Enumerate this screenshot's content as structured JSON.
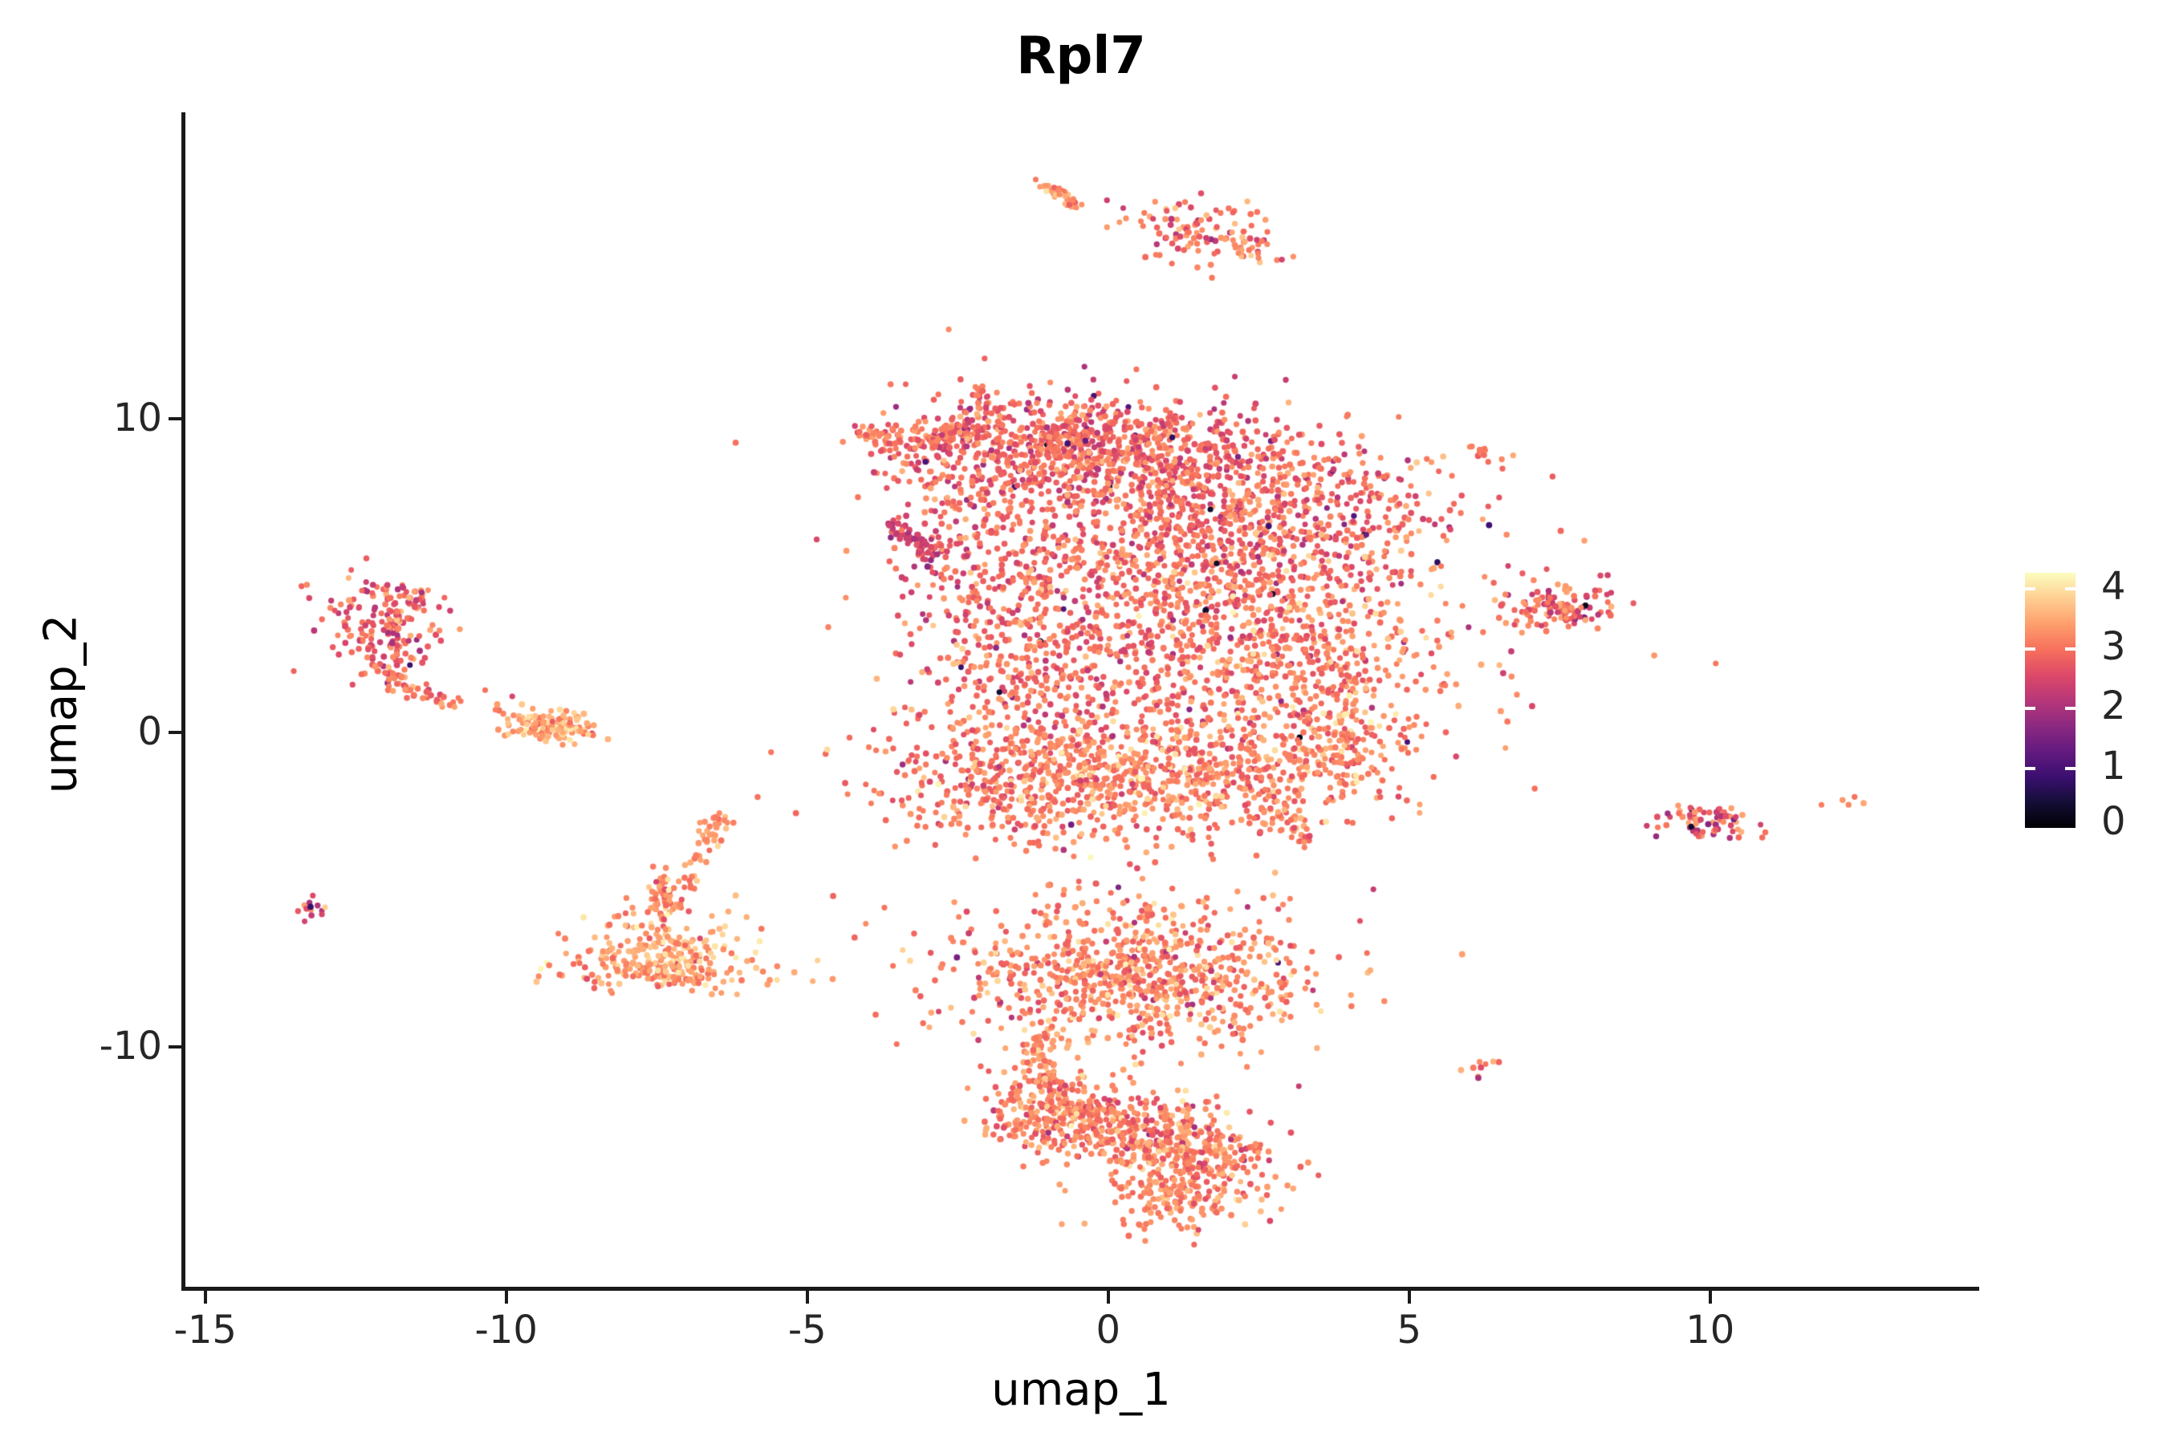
{
  "chart_data": {
    "type": "scatter",
    "title": "Rpl7",
    "xlabel": "umap_1",
    "ylabel": "umap_2",
    "xlim": [
      -15.37,
      14.47
    ],
    "ylim": [
      -17.7,
      19.75
    ],
    "grid": false,
    "point_radius_px": 3.6,
    "xticks": [
      {
        "value": -15,
        "label": "-15"
      },
      {
        "value": -10,
        "label": "-10"
      },
      {
        "value": -5,
        "label": "-5"
      },
      {
        "value": 0,
        "label": "0"
      },
      {
        "value": 5,
        "label": "5"
      },
      {
        "value": 10,
        "label": "10"
      }
    ],
    "yticks": [
      {
        "value": 10,
        "label": "10"
      },
      {
        "value": 0,
        "label": "0"
      },
      {
        "value": -10,
        "label": "-10"
      }
    ],
    "legend": {
      "position": "right",
      "vmax": 4.27,
      "ticks": [
        {
          "value": 4,
          "label": "4"
        },
        {
          "value": 3,
          "label": "3"
        },
        {
          "value": 2,
          "label": "2"
        },
        {
          "value": 1,
          "label": "1"
        },
        {
          "value": 0,
          "label": "0"
        }
      ]
    },
    "colormap": {
      "name": "magma",
      "stops": [
        [
          0.0,
          "#000004"
        ],
        [
          0.1,
          "#140e36"
        ],
        [
          0.2,
          "#3b0f70"
        ],
        [
          0.3,
          "#641a80"
        ],
        [
          0.4,
          "#8c2981"
        ],
        [
          0.5,
          "#b73779"
        ],
        [
          0.6,
          "#de4968"
        ],
        [
          0.7,
          "#f7705c"
        ],
        [
          0.8,
          "#fe9f6d"
        ],
        [
          0.9,
          "#fecf92"
        ],
        [
          1.0,
          "#fcfdbf"
        ]
      ]
    },
    "axis_color": "#1a1a1a",
    "tick_text_color": "#262626",
    "clusters": [
      {
        "name": "main-central",
        "blobs": [
          {
            "kind": "strip",
            "pts": [
              [
                -4.05,
                9.45
              ],
              [
                -3.1,
                9.25
              ],
              [
                -2.15,
                9.8
              ]
            ],
            "jx": 0.18,
            "jy": 0.22,
            "n": 120,
            "v": [
              3.0,
              0.3
            ],
            "red": 0.12
          },
          {
            "kind": "gauss",
            "cx": -3.1,
            "cy": 8.55,
            "sx": 0.5,
            "sy": 0.35,
            "n": 22,
            "v": [
              2.9,
              0.35
            ],
            "red": 0.15
          },
          {
            "kind": "strip",
            "pts": [
              [
                -2.12,
                11.2
              ],
              [
                -2.0,
                10.1
              ]
            ],
            "jx": 0.1,
            "jy": 0.25,
            "n": 22,
            "v": [
              3.0,
              0.3
            ]
          },
          {
            "kind": "gauss",
            "cx": -0.6,
            "cy": 9.2,
            "sx": 1.45,
            "sy": 0.8,
            "n": 520,
            "v": [
              2.95,
              0.33
            ],
            "red": 0.13,
            "dark": 0.015
          },
          {
            "kind": "gauss",
            "cx": 0.9,
            "cy": 8.4,
            "sx": 1.5,
            "sy": 0.9,
            "n": 340,
            "v": [
              2.95,
              0.33
            ],
            "red": 0.13,
            "dark": 0.015
          },
          {
            "kind": "gauss",
            "cx": 2.3,
            "cy": 6.6,
            "sx": 1.8,
            "sy": 1.5,
            "n": 780,
            "v": [
              3.0,
              0.33
            ],
            "red": 0.12,
            "dark": 0.012
          },
          {
            "kind": "gauss",
            "cx": 2.45,
            "cy": 2.4,
            "sx": 1.7,
            "sy": 2.1,
            "n": 800,
            "v": [
              3.1,
              0.32
            ],
            "red": 0.08,
            "dark": 0.008,
            "pale": 0.06
          },
          {
            "kind": "gauss",
            "cx": 3.9,
            "cy": 0.3,
            "sx": 0.5,
            "sy": 1.3,
            "n": 140,
            "v": [
              3.15,
              0.3
            ],
            "pale": 0.06
          },
          {
            "kind": "gauss",
            "cx": 0.2,
            "cy": 3.0,
            "sx": 1.6,
            "sy": 3.0,
            "n": 380,
            "v": [
              3.0,
              0.33
            ],
            "red": 0.1
          },
          {
            "kind": "gauss",
            "cx": -1.35,
            "cy": 3.0,
            "sx": 1.0,
            "sy": 2.6,
            "n": 480,
            "v": [
              3.0,
              0.33
            ],
            "red": 0.1,
            "dark": 0.01
          },
          {
            "kind": "gauss",
            "cx": -1.2,
            "cy": -1.6,
            "sx": 1.4,
            "sy": 1.0,
            "n": 470,
            "v": [
              3.1,
              0.3
            ],
            "pale": 0.05
          },
          {
            "kind": "gauss",
            "cx": 1.6,
            "cy": -1.4,
            "sx": 1.4,
            "sy": 0.9,
            "n": 360,
            "v": [
              3.15,
              0.3
            ],
            "pale": 0.06
          },
          {
            "kind": "strip",
            "pts": [
              [
                2.5,
                -1.9
              ],
              [
                3.0,
                -2.7
              ],
              [
                3.3,
                -3.45
              ]
            ],
            "jx": 0.15,
            "jy": 0.25,
            "n": 40,
            "v": [
              3.2,
              0.28
            ]
          },
          {
            "kind": "strip",
            "pts": [
              [
                -3.62,
                6.65
              ],
              [
                -3.25,
                6.2
              ],
              [
                -2.9,
                5.7
              ]
            ],
            "jx": 0.13,
            "jy": 0.18,
            "n": 65,
            "v": [
              2.5,
              0.4
            ],
            "red": 0.45
          },
          {
            "kind": "gauss",
            "cx": -2.95,
            "cy": 4.7,
            "sx": 0.4,
            "sy": 0.45,
            "n": 10,
            "v": [
              2.9,
              0.4
            ]
          },
          {
            "kind": "gauss",
            "cx": -2.2,
            "cy": 7.4,
            "sx": 0.65,
            "sy": 1.1,
            "n": 130,
            "v": [
              2.9,
              0.35
            ],
            "red": 0.13
          }
        ]
      },
      {
        "name": "top-streak",
        "blobs": [
          {
            "kind": "strip",
            "pts": [
              [
                -1.05,
                17.5
              ],
              [
                -0.5,
                16.8
              ]
            ],
            "jx": 0.08,
            "jy": 0.1,
            "n": 40,
            "v": [
              3.35,
              0.3
            ],
            "pale": 0.1
          },
          {
            "kind": "points",
            "pts": [
              [
                -0.02,
                16.95,
                2.35
              ],
              [
                0.25,
                16.7,
                2.3
              ],
              [
                0.6,
                16.55,
                3.1
              ],
              [
                0.95,
                16.35,
                3.3
              ]
            ]
          },
          {
            "kind": "gauss",
            "cx": 1.5,
            "cy": 15.9,
            "sx": 0.7,
            "sy": 0.5,
            "rot": -25,
            "n": 105,
            "v": [
              3.2,
              0.33
            ],
            "red": 0.14
          },
          {
            "kind": "strip",
            "pts": [
              [
                2.15,
                15.45
              ],
              [
                2.55,
                15.1
              ]
            ],
            "jx": 0.1,
            "jy": 0.1,
            "n": 12,
            "v": [
              3.3,
              0.3
            ]
          }
        ]
      },
      {
        "name": "left-hook",
        "blobs": [
          {
            "kind": "gauss",
            "cx": -12.05,
            "cy": 3.4,
            "sx": 0.45,
            "sy": 0.8,
            "n": 165,
            "v": [
              2.95,
              0.35
            ],
            "red": 0.22
          },
          {
            "kind": "gauss",
            "cx": -11.75,
            "cy": 4.4,
            "sx": 0.3,
            "sy": 0.22,
            "n": 25,
            "v": [
              3.0,
              0.35
            ],
            "red": 0.2
          },
          {
            "kind": "strip",
            "pts": [
              [
                -12.15,
                2.3
              ],
              [
                -11.7,
                1.4
              ],
              [
                -11.05,
                1.0
              ],
              [
                -10.7,
                0.9
              ]
            ],
            "jx": 0.1,
            "jy": 0.13,
            "n": 55,
            "v": [
              3.1,
              0.3
            ]
          },
          {
            "kind": "points",
            "pts": [
              [
                -10.35,
                1.35,
                3.0
              ],
              [
                -10.15,
                0.9,
                3.4
              ],
              [
                -9.9,
                1.15,
                2.5
              ],
              [
                -10.05,
                0.6,
                3.2
              ]
            ]
          },
          {
            "kind": "strip",
            "pts": [
              [
                -9.75,
                0.4
              ],
              [
                -9.25,
                0.25
              ],
              [
                -8.8,
                -0.05
              ]
            ],
            "jx": 0.28,
            "jy": 0.2,
            "n": 130,
            "v": [
              3.35,
              0.28
            ],
            "pale": 0.08
          },
          {
            "kind": "points",
            "pts": [
              [
                -11.6,
                2.15,
                0.85
              ]
            ]
          }
        ]
      },
      {
        "name": "left-triangle",
        "blobs": [
          {
            "kind": "strip",
            "pts": [
              [
                -6.35,
                -2.3
              ],
              [
                -6.7,
                -3.5
              ],
              [
                -6.95,
                -4.45
              ]
            ],
            "jx": 0.1,
            "jy": 0.18,
            "n": 38,
            "v": [
              3.3,
              0.28
            ]
          },
          {
            "kind": "strip",
            "pts": [
              [
                -7.0,
                -4.7
              ],
              [
                -7.25,
                -5.6
              ]
            ],
            "jx": 0.1,
            "jy": 0.15,
            "n": 20,
            "v": [
              3.3,
              0.3
            ]
          },
          {
            "kind": "strip",
            "pts": [
              [
                -7.35,
                -4.4
              ],
              [
                -7.55,
                -5.7
              ]
            ],
            "jx": 0.1,
            "jy": 0.2,
            "n": 26,
            "v": [
              3.25,
              0.3
            ]
          },
          {
            "kind": "gauss",
            "cx": -7.4,
            "cy": -6.8,
            "sx": 0.7,
            "sy": 0.75,
            "n": 200,
            "v": [
              3.35,
              0.3
            ],
            "pale": 0.09
          },
          {
            "kind": "gauss",
            "cx": -7.4,
            "cy": -7.6,
            "sx": 0.95,
            "sy": 0.28,
            "n": 120,
            "v": [
              3.35,
              0.3
            ],
            "pale": 0.08
          }
        ]
      },
      {
        "name": "bottom-s-shape",
        "blobs": [
          {
            "kind": "gauss",
            "cx": 0.45,
            "cy": -7.7,
            "sx": 1.5,
            "sy": 1.15,
            "rot": -6,
            "n": 820,
            "v": [
              3.15,
              0.3
            ],
            "red": 0.07,
            "pale": 0.07,
            "dark": 0.006
          },
          {
            "kind": "strip",
            "pts": [
              [
                0.58,
                -5.45
              ],
              [
                0.6,
                -6.0
              ]
            ],
            "jx": 0.08,
            "jy": 0.12,
            "n": 10,
            "v": [
              3.1,
              0.3
            ]
          },
          {
            "kind": "strip",
            "pts": [
              [
                -1.0,
                -9.4
              ],
              [
                -1.15,
                -10.4
              ],
              [
                -0.9,
                -11.3
              ]
            ],
            "jx": 0.12,
            "jy": 0.2,
            "n": 55,
            "v": [
              3.2,
              0.3
            ]
          },
          {
            "kind": "gauss",
            "cx": -1.25,
            "cy": -12.0,
            "sx": 0.5,
            "sy": 0.85,
            "n": 130,
            "v": [
              3.2,
              0.3
            ]
          },
          {
            "kind": "strip",
            "pts": [
              [
                -1.1,
                -11.9
              ],
              [
                -0.2,
                -12.3
              ],
              [
                0.8,
                -12.9
              ],
              [
                1.9,
                -13.6
              ],
              [
                2.3,
                -13.9
              ]
            ],
            "jx": 0.5,
            "jy": 0.65,
            "n": 620,
            "v": [
              3.15,
              0.3
            ],
            "red": 0.07,
            "pale": 0.06
          },
          {
            "kind": "gauss",
            "cx": 1.1,
            "cy": -14.9,
            "sx": 0.65,
            "sy": 0.5,
            "n": 150,
            "v": [
              3.2,
              0.3
            ]
          }
        ]
      },
      {
        "name": "right-mid",
        "blobs": [
          {
            "kind": "gauss",
            "cx": 7.55,
            "cy": 4.0,
            "sx": 0.45,
            "sy": 0.38,
            "n": 115,
            "v": [
              3.0,
              0.35
            ],
            "red": 0.2,
            "dark": 0.025
          },
          {
            "kind": "points",
            "pts": [
              [
                6.6,
                4.4,
                3.2
              ],
              [
                6.9,
                4.15,
                3.4
              ],
              [
                6.75,
                3.9,
                2.9
              ]
            ]
          }
        ]
      },
      {
        "name": "right-upper-streak",
        "blobs": [
          {
            "kind": "strip",
            "pts": [
              [
                5.95,
                9.1
              ],
              [
                6.4,
                8.8
              ]
            ],
            "jx": 0.09,
            "jy": 0.09,
            "n": 13,
            "v": [
              3.2,
              0.3
            ]
          }
        ]
      },
      {
        "name": "right-small",
        "blobs": [
          {
            "kind": "gauss",
            "cx": 9.95,
            "cy": -2.85,
            "sx": 0.4,
            "sy": 0.26,
            "n": 75,
            "v": [
              2.95,
              0.4
            ],
            "red": 0.3,
            "dark": 0.03
          }
        ]
      },
      {
        "name": "far-right-dots",
        "blobs": [
          {
            "kind": "points",
            "pts": [
              [
                11.85,
                -2.3,
                3.1
              ],
              [
                12.2,
                -2.15,
                3.35
              ],
              [
                12.4,
                -2.05,
                3.0
              ],
              [
                12.55,
                -2.25,
                3.5
              ],
              [
                12.3,
                -2.3,
                3.2
              ]
            ]
          }
        ]
      },
      {
        "name": "small-right-bottom",
        "blobs": [
          {
            "kind": "strip",
            "pts": [
              [
                5.95,
                -10.85
              ],
              [
                6.45,
                -10.3
              ]
            ],
            "jx": 0.1,
            "jy": 0.1,
            "n": 8,
            "v": [
              3.2,
              0.3
            ]
          },
          {
            "kind": "points",
            "pts": [
              [
                6.15,
                -11.0,
                2.0
              ]
            ]
          }
        ]
      },
      {
        "name": "far-left-tiny",
        "blobs": [
          {
            "kind": "gauss",
            "cx": -13.25,
            "cy": -5.5,
            "sx": 0.18,
            "sy": 0.17,
            "n": 12,
            "v": [
              2.9,
              0.4
            ],
            "red": 0.3
          },
          {
            "kind": "points",
            "pts": [
              [
                -13.25,
                -5.55,
                0.8
              ]
            ]
          }
        ]
      }
    ]
  }
}
